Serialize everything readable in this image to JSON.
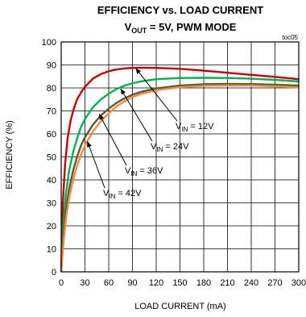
{
  "chart_data": {
    "type": "line",
    "title": "EFFICIENCY vs. LOAD CURRENT",
    "subtitle": {
      "var": "V",
      "var_sub": "OUT",
      "rest": " = 5V, PWM MODE"
    },
    "tag": "toc05",
    "xlabel": "LOAD CURRENT  (mA)",
    "ylabel": "EFFICIENCY (%)",
    "xlim": [
      0,
      300
    ],
    "ylim": [
      0,
      100
    ],
    "xticks": [
      0,
      30,
      60,
      90,
      120,
      150,
      180,
      210,
      240,
      270,
      300
    ],
    "yticks": [
      0,
      10,
      20,
      30,
      40,
      50,
      60,
      70,
      80,
      90,
      100
    ],
    "grid": true,
    "series": [
      {
        "name": "V_IN = 12V",
        "color": "#c00000",
        "x": [
          0,
          2,
          5,
          8,
          12,
          16,
          20,
          25,
          30,
          40,
          50,
          60,
          70,
          80,
          90,
          100,
          120,
          150,
          180,
          210,
          240,
          270,
          300
        ],
        "y": [
          0,
          30,
          47,
          58,
          66,
          71,
          75,
          78,
          80.5,
          84,
          86,
          87.3,
          88,
          88.5,
          88.7,
          88.8,
          88.7,
          88.3,
          87.5,
          86.6,
          85.7,
          84.8,
          83.8
        ]
      },
      {
        "name": "V_IN = 24V",
        "color": "#00b050",
        "x": [
          0,
          3,
          6,
          10,
          15,
          20,
          25,
          30,
          40,
          50,
          60,
          70,
          80,
          90,
          100,
          120,
          150,
          180,
          210,
          240,
          270,
          300
        ],
        "y": [
          0,
          22,
          34,
          44,
          52,
          58,
          63,
          66.5,
          71.5,
          75,
          77.5,
          79.5,
          81,
          82,
          82.8,
          83.8,
          84.3,
          84.4,
          84.3,
          84,
          83.5,
          82.8
        ]
      },
      {
        "name": "V_IN = 36V",
        "color": "#5a5a38",
        "x": [
          0,
          3,
          6,
          10,
          15,
          20,
          25,
          30,
          40,
          50,
          60,
          70,
          80,
          90,
          100,
          120,
          150,
          180,
          210,
          240,
          270,
          300
        ],
        "y": [
          0,
          16,
          27,
          36,
          44,
          50,
          55,
          58.5,
          64,
          68,
          71,
          73.5,
          75.5,
          77,
          78.2,
          79.8,
          81,
          81.6,
          81.8,
          81.7,
          81.4,
          81
        ]
      },
      {
        "name": "V_IN = 42V",
        "color": "#f08c3c",
        "x": [
          0,
          3,
          6,
          10,
          15,
          20,
          25,
          30,
          40,
          50,
          60,
          70,
          80,
          90,
          100,
          120,
          150,
          180,
          210,
          240,
          270,
          300
        ],
        "y": [
          0,
          13,
          23,
          32,
          40,
          46,
          51,
          55,
          61,
          65.5,
          69,
          72,
          74.2,
          76,
          77.3,
          79,
          80.3,
          80.9,
          81.1,
          81,
          80.7,
          80.2
        ]
      }
    ],
    "annotations": [
      {
        "series": 0,
        "sub": "IN",
        "value": " = 12V"
      },
      {
        "series": 1,
        "sub": "IN",
        "value": " = 24V"
      },
      {
        "series": 2,
        "sub": "IN",
        "value": " = 36V"
      },
      {
        "series": 3,
        "sub": "IN",
        "value": " = 42V"
      }
    ]
  }
}
